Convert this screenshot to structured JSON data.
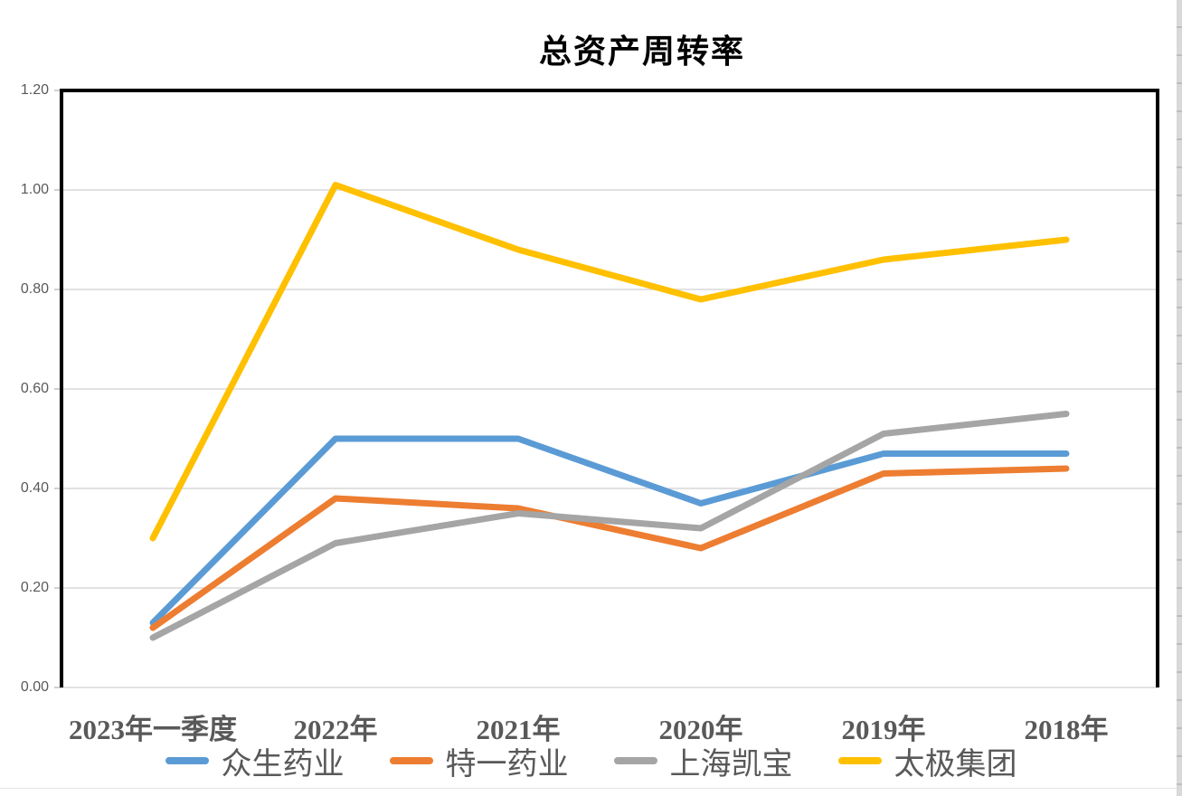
{
  "chart_data": {
    "type": "line",
    "title": "总资产周转率",
    "categories": [
      "2023年一季度",
      "2022年",
      "2021年",
      "2020年",
      "2019年",
      "2018年"
    ],
    "series": [
      {
        "name": "众生药业",
        "color": "#5B9BD5",
        "values": [
          0.13,
          0.5,
          0.5,
          0.37,
          0.47,
          0.47
        ]
      },
      {
        "name": "特一药业",
        "color": "#ED7D31",
        "values": [
          0.12,
          0.38,
          0.36,
          0.28,
          0.43,
          0.44
        ]
      },
      {
        "name": "上海凯宝",
        "color": "#A5A5A5",
        "values": [
          0.1,
          0.29,
          0.35,
          0.32,
          0.51,
          0.55
        ]
      },
      {
        "name": "太极集团",
        "color": "#FFC000",
        "values": [
          0.3,
          1.01,
          0.88,
          0.78,
          0.86,
          0.9
        ]
      }
    ],
    "ylim": [
      0.0,
      1.2
    ],
    "ytick_step": 0.2,
    "ytick_labels": [
      "0.00",
      "0.20",
      "0.40",
      "0.60",
      "0.80",
      "1.00",
      "1.20"
    ],
    "grid": true,
    "legend_position": "bottom"
  },
  "colors": {
    "gridline": "#d9d9d9",
    "tick_stub": "#c0c0c0",
    "axis_border": "#000000",
    "axis_label": "#595959",
    "title_text": "#000000"
  }
}
